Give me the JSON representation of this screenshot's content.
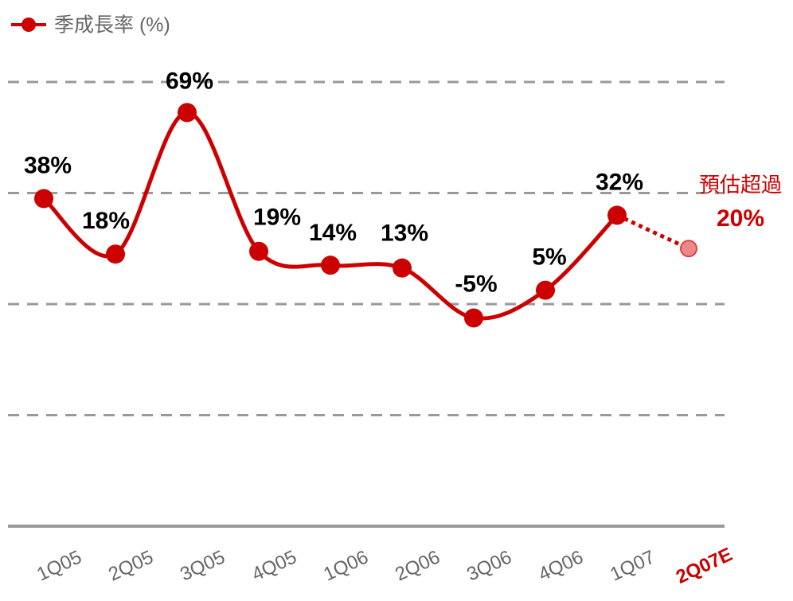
{
  "chart_data": {
    "type": "line",
    "categories": [
      "1Q05",
      "2Q05",
      "3Q05",
      "4Q05",
      "1Q06",
      "2Q06",
      "3Q06",
      "4Q06",
      "1Q07",
      "2Q07E"
    ],
    "series": [
      {
        "name": "季成長率 (%)",
        "color": "#cc0000",
        "values": [
          38,
          18,
          69,
          19,
          14,
          13,
          -5,
          5,
          32,
          20
        ],
        "value_labels": [
          "38%",
          "18%",
          "69%",
          "19%",
          "14%",
          "13%",
          "-5%",
          "5%",
          "32%",
          "20%"
        ]
      }
    ],
    "projected_index": 9,
    "annotations": [
      {
        "text": "預估超過"
      }
    ],
    "ylim": [
      -80,
      80
    ],
    "yticks": [
      -80,
      -40,
      0,
      40,
      80
    ],
    "grid": true,
    "legend": "top-left"
  }
}
